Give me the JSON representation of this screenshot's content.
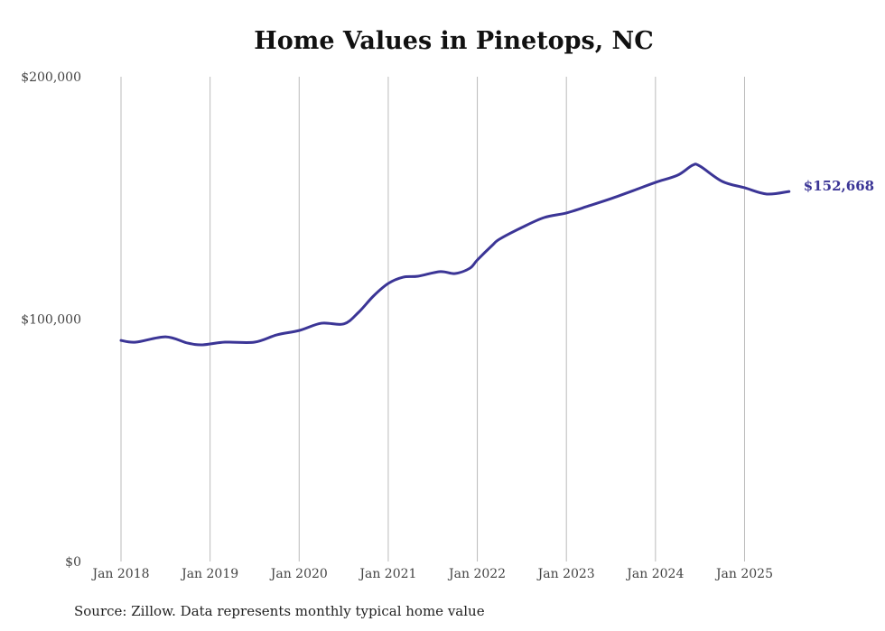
{
  "chart_data": {
    "type": "line",
    "title": "Home Values in Pinetops, NC",
    "source": "Source: Zillow. Data represents monthly typical home value",
    "xlabel": "",
    "ylabel": "",
    "ylim": [
      0,
      200000
    ],
    "y_ticks": [
      0,
      100000,
      200000
    ],
    "y_tick_labels": [
      "$0",
      "$100,000",
      "$200,000"
    ],
    "x_ticks": [
      "2018-01",
      "2019-01",
      "2020-01",
      "2021-01",
      "2022-01",
      "2023-01",
      "2024-01",
      "2025-01"
    ],
    "x_tick_labels": [
      "Jan 2018",
      "Jan 2019",
      "Jan 2020",
      "Jan 2021",
      "Jan 2022",
      "Jan 2023",
      "Jan 2024",
      "Jan 2025"
    ],
    "grid": "vertical",
    "line_color": "#3b3596",
    "end_label": "$152,668",
    "series": [
      {
        "name": "Typical home value",
        "x": [
          "2018-01",
          "2018-03",
          "2018-07",
          "2018-10",
          "2018-12",
          "2019-03",
          "2019-07",
          "2019-10",
          "2020-01",
          "2020-04",
          "2020-07",
          "2020-09",
          "2020-11",
          "2021-01",
          "2021-03",
          "2021-05",
          "2021-08",
          "2021-10",
          "2021-12",
          "2022-01",
          "2022-03",
          "2022-04",
          "2022-07",
          "2022-10",
          "2023-01",
          "2023-04",
          "2023-07",
          "2023-10",
          "2024-01",
          "2024-04",
          "2024-06",
          "2024-07",
          "2024-10",
          "2025-01",
          "2025-04",
          "2025-07"
        ],
        "values": [
          91200,
          90500,
          92700,
          90100,
          89400,
          90500,
          90500,
          93500,
          95300,
          98300,
          98000,
          102800,
          109500,
          114700,
          117300,
          117700,
          119600,
          118800,
          121000,
          124400,
          130400,
          133000,
          137800,
          141900,
          143800,
          146700,
          149700,
          153000,
          156400,
          159400,
          163500,
          163100,
          156800,
          154200,
          151600,
          152668
        ]
      }
    ]
  }
}
